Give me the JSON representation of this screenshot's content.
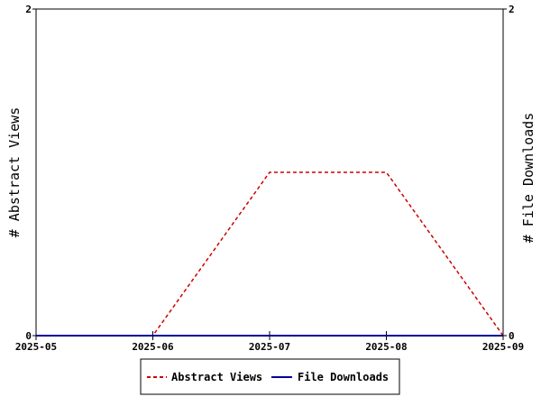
{
  "chart_data": {
    "type": "line",
    "x": [
      "2025-05",
      "2025-06",
      "2025-07",
      "2025-08",
      "2025-09"
    ],
    "y_left_label": "# Abstract Views",
    "y_right_label": "# File Downloads",
    "y_left_ticks": [
      "0",
      "2"
    ],
    "y_right_ticks": [
      "0",
      "2"
    ],
    "ylim": [
      0,
      2
    ],
    "grid": false,
    "legend_position": "bottom",
    "series": [
      {
        "name": "Abstract Views",
        "values": [
          0,
          0,
          1,
          1,
          0
        ],
        "color": "#cc0000",
        "style": "dashed",
        "axis": "left"
      },
      {
        "name": "File Downloads",
        "values": [
          0,
          0,
          0,
          0,
          0
        ],
        "color": "#000099",
        "style": "solid",
        "axis": "right"
      }
    ]
  }
}
